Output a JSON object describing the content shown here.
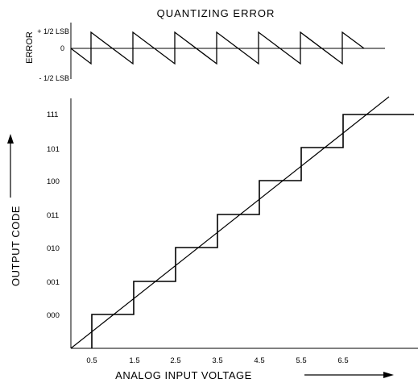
{
  "error_plot": {
    "title": "QUANTIZING ERROR",
    "ylabel": "ERROR",
    "yticks": [
      "+ 1/2 LSB",
      "0",
      "- 1/2 LSB"
    ],
    "teeth": 7,
    "error_range": [
      -0.5,
      0.5
    ]
  },
  "transfer_plot": {
    "ylabel": "OUTPUT CODE",
    "xlabel": "ANALOG INPUT VOLTAGE",
    "codes": [
      "000",
      "001",
      "010",
      "011",
      "100",
      "101",
      "111"
    ],
    "x_ticks": [
      "0.5",
      "1.5",
      "2.5",
      "3.5",
      "4.5",
      "5.5",
      "6.5"
    ],
    "step_thresholds": [
      0.5,
      1.5,
      2.5,
      3.5,
      4.5,
      5.5,
      6.5
    ]
  }
}
